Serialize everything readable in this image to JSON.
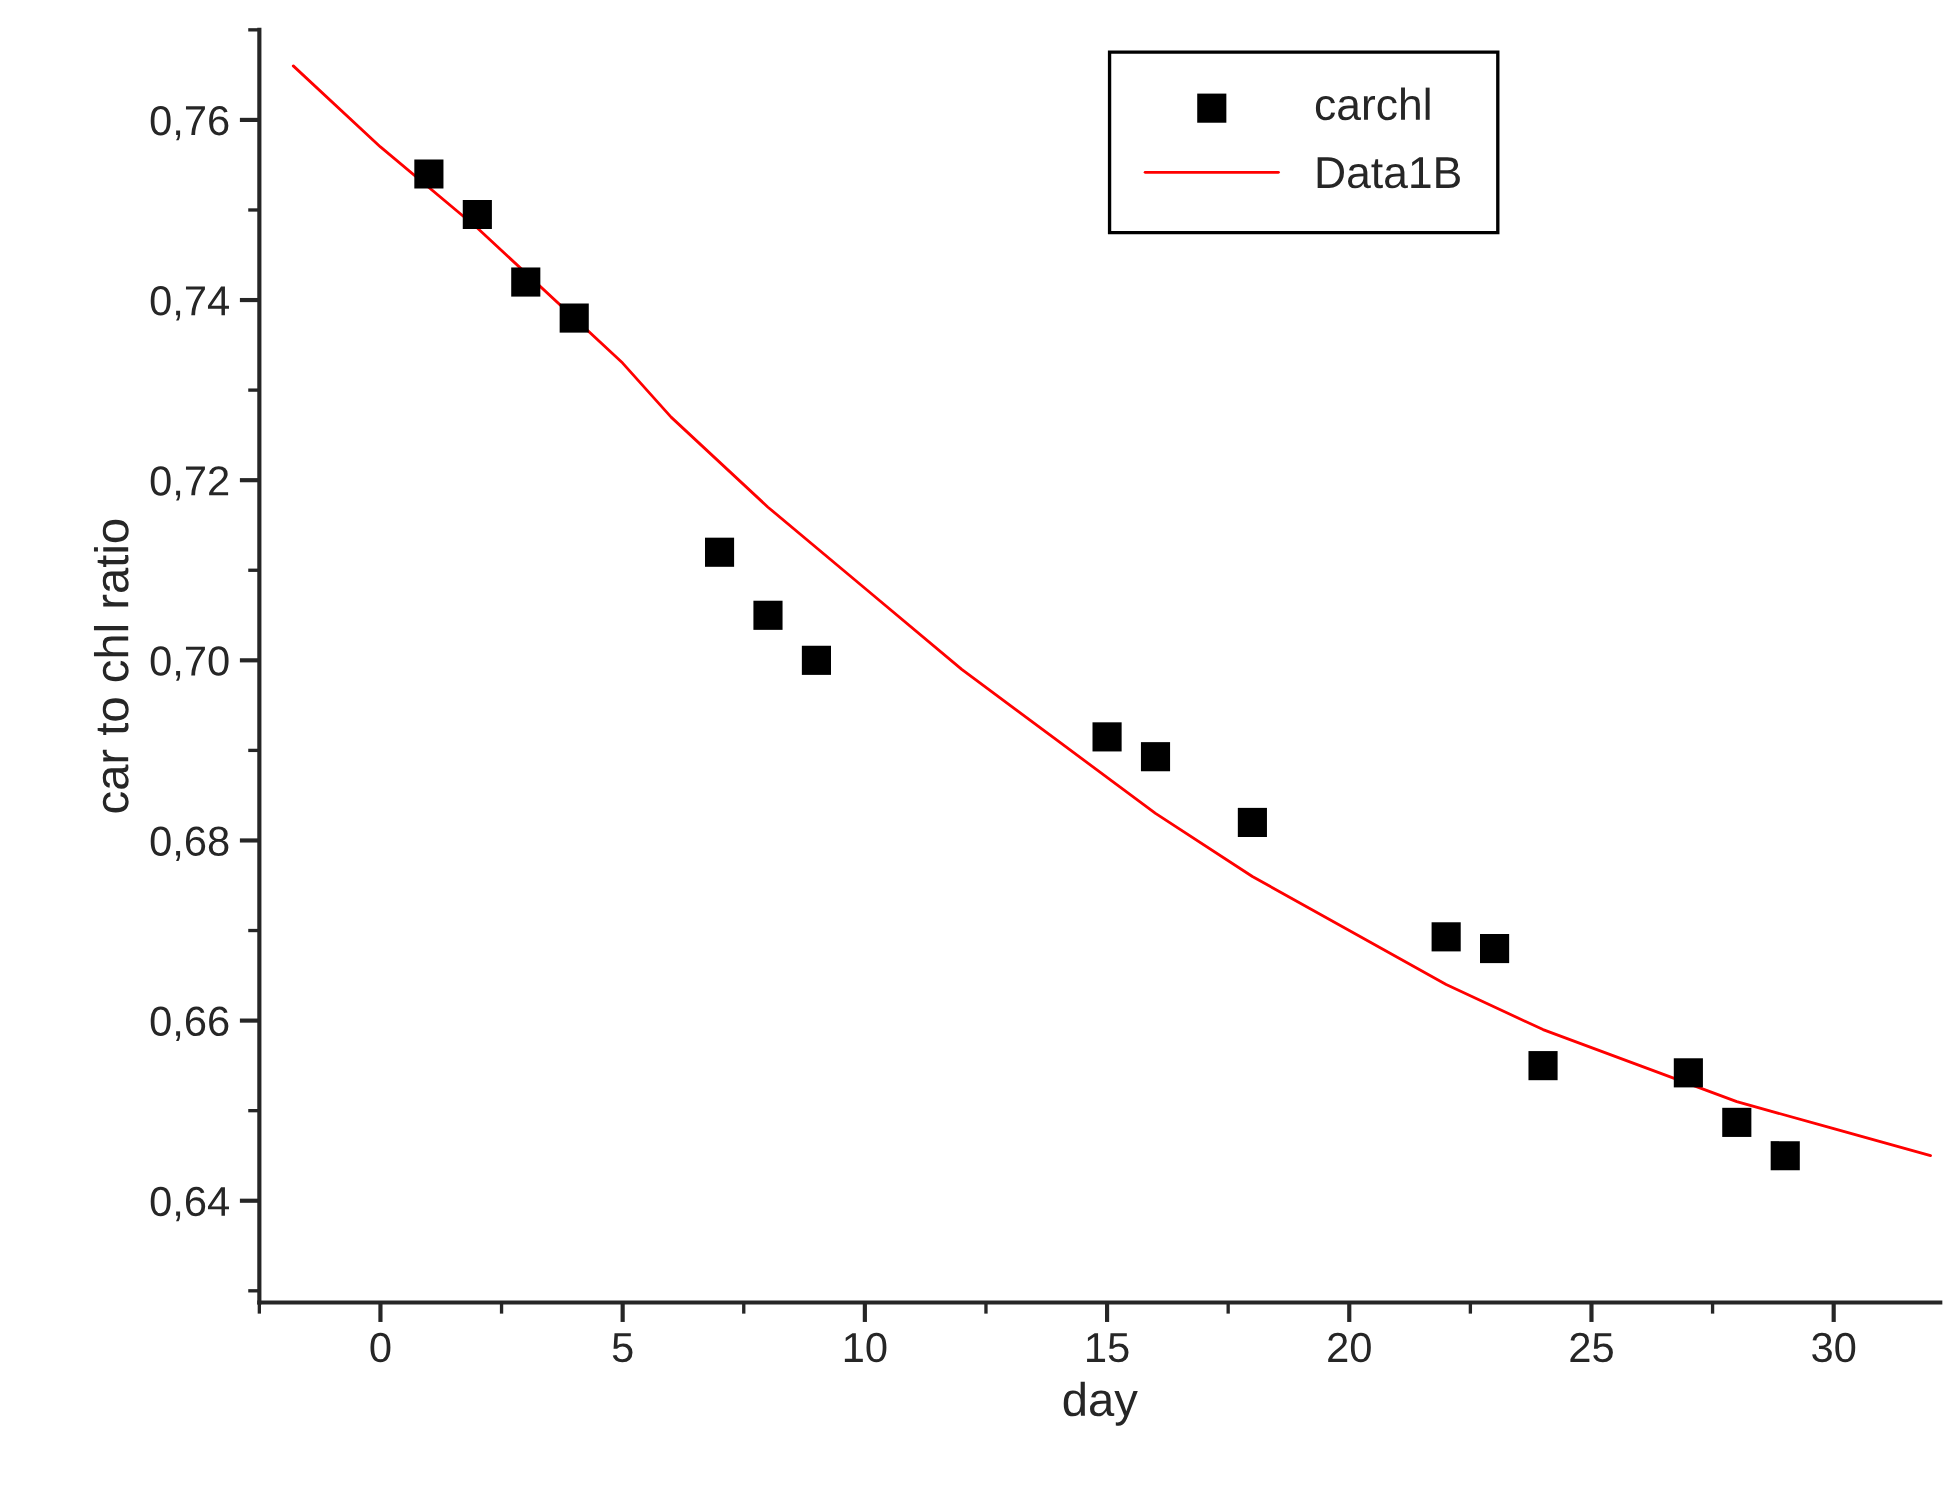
{
  "chart_data": {
    "type": "scatter",
    "xlabel": "day",
    "ylabel": "car to chl ratio",
    "series": [
      {
        "name": "carchl",
        "color": "#000000",
        "marker": "square",
        "x": [
          1,
          2,
          3,
          4,
          7,
          8,
          9,
          15,
          16,
          18,
          22,
          23,
          24,
          27,
          28,
          29
        ],
        "values": [
          0.754,
          0.7495,
          0.742,
          0.738,
          0.712,
          0.705,
          0.7,
          0.6915,
          0.6893,
          0.682,
          0.6693,
          0.668,
          0.655,
          0.6542,
          0.6487,
          0.645
        ]
      },
      {
        "name": "Data1B",
        "type": "line",
        "color": "#ff0000",
        "x": [
          -1.8,
          0,
          2,
          5,
          6,
          8,
          10,
          12,
          14,
          16,
          18,
          20,
          22,
          24,
          26,
          28,
          30,
          32
        ],
        "values": [
          0.766,
          0.757,
          0.748,
          0.733,
          0.727,
          0.717,
          0.708,
          0.699,
          0.691,
          0.683,
          0.676,
          0.67,
          0.664,
          0.659,
          0.655,
          0.651,
          0.648,
          0.645
        ]
      }
    ],
    "xlim": [
      -2.5,
      32.2
    ],
    "ylim": [
      0.6287,
      0.77
    ],
    "xticks": [
      0,
      5,
      10,
      15,
      20,
      25,
      30
    ],
    "yticks": [
      {
        "value": 0.64,
        "label": "0,64"
      },
      {
        "value": 0.66,
        "label": "0,66"
      },
      {
        "value": 0.68,
        "label": "0,68"
      },
      {
        "value": 0.7,
        "label": "0,70"
      },
      {
        "value": 0.72,
        "label": "0,72"
      },
      {
        "value": 0.74,
        "label": "0,74"
      },
      {
        "value": 0.76,
        "label": "0,76"
      }
    ],
    "legend": "top right",
    "grid": false
  }
}
